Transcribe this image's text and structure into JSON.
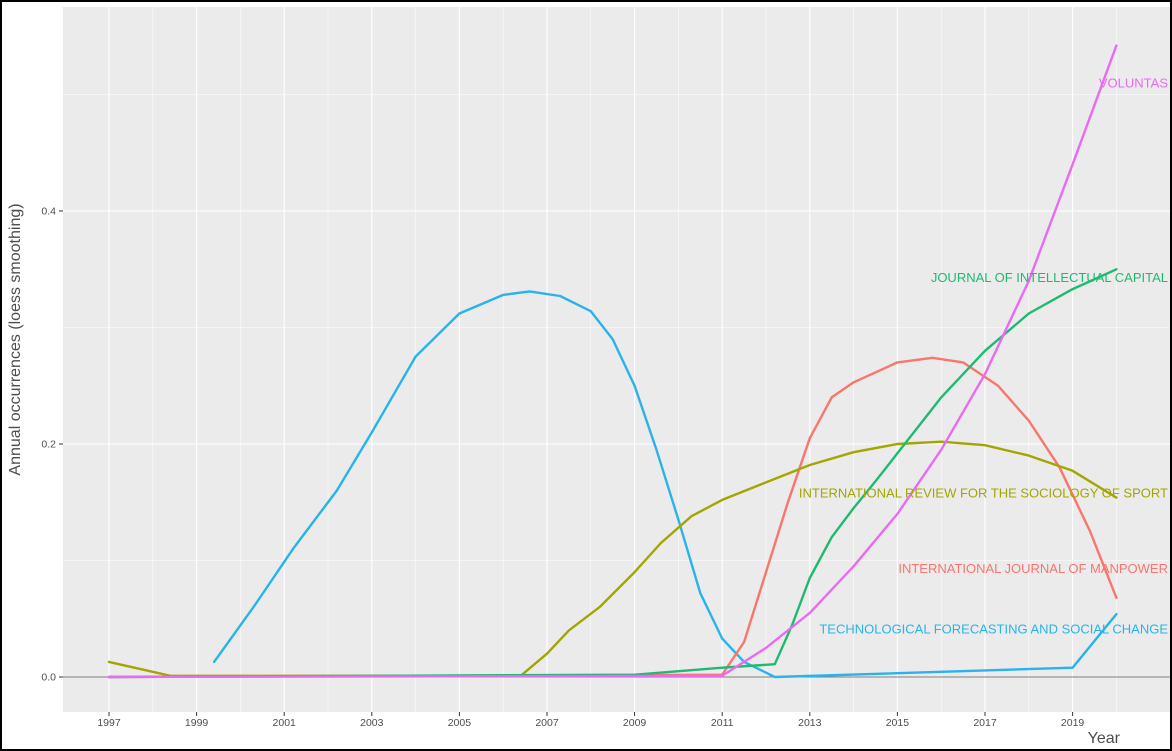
{
  "chart_data": {
    "type": "line",
    "title": "",
    "xlabel": "Year",
    "ylabel": "Annual occurrences (loess smoothing)",
    "xlim": [
      1996.3,
      2021.1
    ],
    "ylim": [
      -0.025,
      0.575
    ],
    "grid": true,
    "legend": "direct labels at right end of lines",
    "x_ticks": [
      1997,
      1999,
      2001,
      2003,
      2005,
      2007,
      2009,
      2011,
      2013,
      2015,
      2017,
      2019
    ],
    "y_ticks": [
      0.0,
      0.2,
      0.4
    ],
    "y_tick_labels": [
      "0.0",
      "0.2",
      "0.4"
    ],
    "colors": {
      "panel_background": "#ebebeb",
      "grid": "#ffffff",
      "zero_line": "#7f7f7f"
    },
    "series": [
      {
        "name": "TECHNOLOGICAL FORECASTING AND SOCIAL CHANGE",
        "color": "#29b3eb",
        "points": [
          [
            1999.4,
            0.013
          ],
          [
            2000.3,
            0.06
          ],
          [
            2001.2,
            0.11
          ],
          [
            2002.2,
            0.16
          ],
          [
            2003,
            0.21
          ],
          [
            2004,
            0.275
          ],
          [
            2005,
            0.312
          ],
          [
            2006,
            0.328
          ],
          [
            2006.6,
            0.331
          ],
          [
            2007.3,
            0.327
          ],
          [
            2008,
            0.314
          ],
          [
            2008.5,
            0.29
          ],
          [
            2009,
            0.25
          ],
          [
            2009.5,
            0.195
          ],
          [
            2010,
            0.135
          ],
          [
            2010.5,
            0.072
          ],
          [
            2011,
            0.033
          ],
          [
            2011.5,
            0.013
          ],
          [
            2012.2,
            0.0
          ],
          [
            2019,
            0.008
          ],
          [
            2020,
            0.054
          ]
        ],
        "label_y": 0.041
      },
      {
        "name": "INTERNATIONAL JOURNAL OF MANPOWER",
        "color": "#f8766d",
        "points": [
          [
            1997,
            0.0
          ],
          [
            2011,
            0.002
          ],
          [
            2011.5,
            0.03
          ],
          [
            2012,
            0.09
          ],
          [
            2012.5,
            0.15
          ],
          [
            2013,
            0.205
          ],
          [
            2013.5,
            0.24
          ],
          [
            2014,
            0.253
          ],
          [
            2015,
            0.27
          ],
          [
            2015.8,
            0.274
          ],
          [
            2016.5,
            0.27
          ],
          [
            2017.3,
            0.25
          ],
          [
            2018,
            0.22
          ],
          [
            2018.7,
            0.18
          ],
          [
            2019.4,
            0.125
          ],
          [
            2020,
            0.068
          ]
        ],
        "label_y": 0.093
      },
      {
        "name": "INTERNATIONAL REVIEW FOR THE SOCIOLOGY OF SPORT",
        "color": "#a3a500",
        "points": [
          [
            1997,
            0.013
          ],
          [
            1998.4,
            0.001
          ],
          [
            2006.4,
            0.001
          ],
          [
            2007,
            0.02
          ],
          [
            2007.5,
            0.04
          ],
          [
            2008.2,
            0.06
          ],
          [
            2009,
            0.09
          ],
          [
            2009.6,
            0.115
          ],
          [
            2010.3,
            0.138
          ],
          [
            2011,
            0.152
          ],
          [
            2012,
            0.167
          ],
          [
            2013,
            0.182
          ],
          [
            2014,
            0.193
          ],
          [
            2015,
            0.2
          ],
          [
            2016,
            0.202
          ],
          [
            2017,
            0.199
          ],
          [
            2018,
            0.19
          ],
          [
            2019,
            0.177
          ],
          [
            2020,
            0.154
          ]
        ],
        "label_y": 0.158
      },
      {
        "name": "JOURNAL OF INTELLECTUAL CAPITAL",
        "color": "#1fba72",
        "points": [
          [
            1997,
            0.0
          ],
          [
            2009,
            0.002
          ],
          [
            2011,
            0.008
          ],
          [
            2012.2,
            0.011
          ],
          [
            2012.6,
            0.045
          ],
          [
            2013,
            0.085
          ],
          [
            2013.5,
            0.12
          ],
          [
            2014,
            0.145
          ],
          [
            2014.5,
            0.168
          ],
          [
            2015,
            0.192
          ],
          [
            2015.5,
            0.216
          ],
          [
            2016,
            0.24
          ],
          [
            2017,
            0.28
          ],
          [
            2018,
            0.312
          ],
          [
            2019,
            0.333
          ],
          [
            2020,
            0.35
          ]
        ],
        "label_y": 0.343
      },
      {
        "name": "VOLUNTAS",
        "color": "#e76bf3",
        "points": [
          [
            1997,
            0.0
          ],
          [
            2011,
            0.001
          ],
          [
            2012,
            0.025
          ],
          [
            2013,
            0.055
          ],
          [
            2014,
            0.095
          ],
          [
            2015,
            0.14
          ],
          [
            2016,
            0.195
          ],
          [
            2017,
            0.26
          ],
          [
            2018,
            0.34
          ],
          [
            2019,
            0.44
          ],
          [
            2020,
            0.542
          ]
        ],
        "label_y": 0.51
      }
    ]
  }
}
